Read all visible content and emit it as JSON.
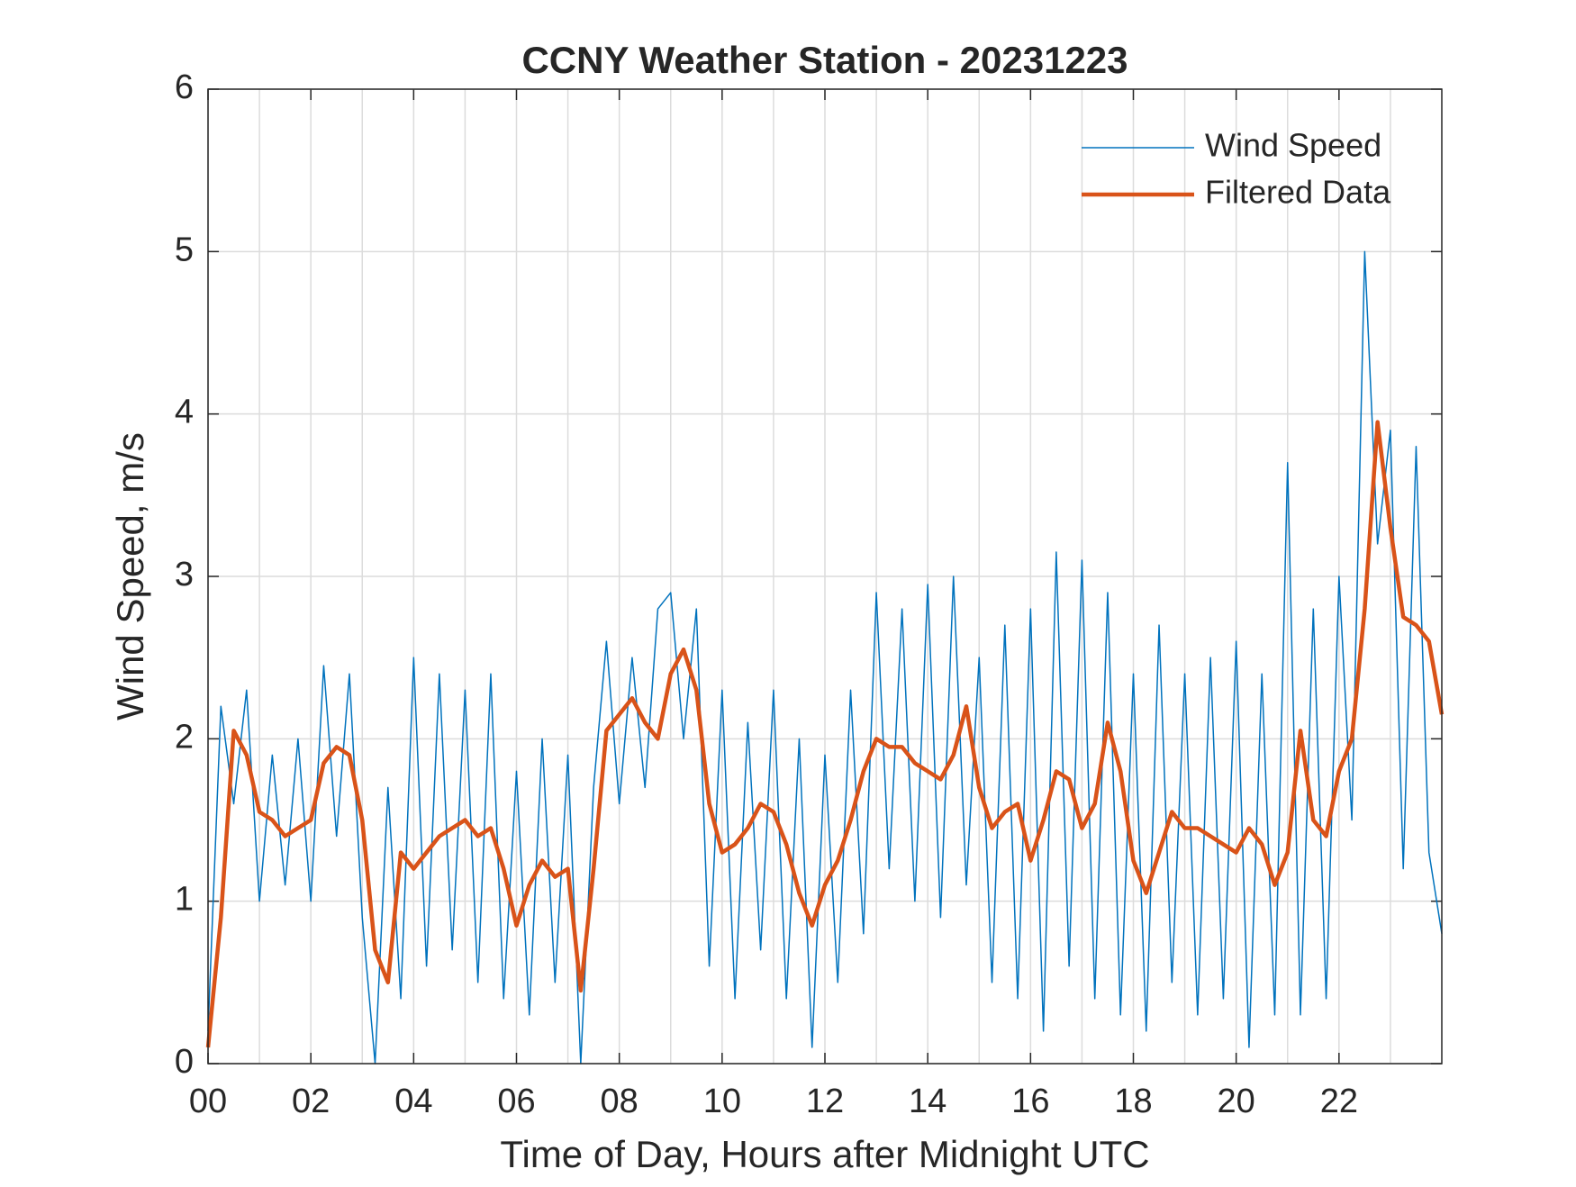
{
  "chart_data": {
    "type": "line",
    "title": "CCNY Weather Station - 20231223",
    "xlabel": "Time of Day, Hours after Midnight UTC",
    "ylabel": "Wind Speed, m/s",
    "xlim": [
      0,
      24
    ],
    "ylim": [
      0,
      6
    ],
    "xticks": [
      {
        "value": 0,
        "label": "00"
      },
      {
        "value": 2,
        "label": "02"
      },
      {
        "value": 4,
        "label": "04"
      },
      {
        "value": 6,
        "label": "06"
      },
      {
        "value": 8,
        "label": "08"
      },
      {
        "value": 10,
        "label": "10"
      },
      {
        "value": 12,
        "label": "12"
      },
      {
        "value": 14,
        "label": "14"
      },
      {
        "value": 16,
        "label": "16"
      },
      {
        "value": 18,
        "label": "18"
      },
      {
        "value": 20,
        "label": "20"
      },
      {
        "value": 22,
        "label": "22"
      }
    ],
    "xminorgrid": [
      1,
      3,
      5,
      7,
      9,
      11,
      13,
      15,
      17,
      19,
      21,
      23
    ],
    "yticks": [
      0,
      1,
      2,
      3,
      4,
      5,
      6
    ],
    "grid": true,
    "legend": "top-right",
    "x": [
      0,
      0.25,
      0.5,
      0.75,
      1,
      1.25,
      1.5,
      1.75,
      2,
      2.25,
      2.5,
      2.75,
      3,
      3.25,
      3.5,
      3.75,
      4,
      4.25,
      4.5,
      4.75,
      5,
      5.25,
      5.5,
      5.75,
      6,
      6.25,
      6.5,
      6.75,
      7,
      7.25,
      7.5,
      7.75,
      8,
      8.25,
      8.5,
      8.75,
      9,
      9.25,
      9.5,
      9.75,
      10,
      10.25,
      10.5,
      10.75,
      11,
      11.25,
      11.5,
      11.75,
      12,
      12.25,
      12.5,
      12.75,
      13,
      13.25,
      13.5,
      13.75,
      14,
      14.25,
      14.5,
      14.75,
      15,
      15.25,
      15.5,
      15.75,
      16,
      16.25,
      16.5,
      16.75,
      17,
      17.25,
      17.5,
      17.75,
      18,
      18.25,
      18.5,
      18.75,
      19,
      19.25,
      19.5,
      19.75,
      20,
      20.25,
      20.5,
      20.75,
      21,
      21.25,
      21.5,
      21.75,
      22,
      22.25,
      22.5,
      22.75,
      23,
      23.25,
      23.5,
      23.75,
      24
    ],
    "series": [
      {
        "name": "Wind Speed",
        "color": "#0072BD",
        "width": 1.5,
        "values": [
          0.2,
          2.2,
          1.6,
          2.3,
          1.0,
          1.9,
          1.1,
          2.0,
          1.0,
          2.45,
          1.4,
          2.4,
          0.9,
          0.0,
          1.7,
          0.4,
          2.5,
          0.6,
          2.4,
          0.7,
          2.3,
          0.5,
          2.4,
          0.4,
          1.8,
          0.3,
          2.0,
          0.5,
          1.9,
          0.0,
          1.7,
          2.6,
          1.6,
          2.5,
          1.7,
          2.8,
          2.9,
          2.0,
          2.8,
          0.6,
          2.3,
          0.4,
          2.1,
          0.7,
          2.3,
          0.4,
          2.0,
          0.1,
          1.9,
          0.5,
          2.3,
          0.8,
          2.9,
          1.2,
          2.8,
          1.0,
          2.95,
          0.9,
          3.0,
          1.1,
          2.5,
          0.5,
          2.7,
          0.4,
          2.8,
          0.2,
          3.15,
          0.6,
          3.1,
          0.4,
          2.9,
          0.3,
          2.4,
          0.2,
          2.7,
          0.5,
          2.4,
          0.3,
          2.5,
          0.4,
          2.6,
          0.1,
          2.4,
          0.3,
          3.7,
          0.3,
          2.8,
          0.4,
          3.0,
          1.5,
          5.0,
          3.2,
          3.9,
          1.2,
          3.8,
          1.3,
          0.8
        ]
      },
      {
        "name": "Filtered Data",
        "color": "#D95319",
        "width": 4.5,
        "values": [
          0.1,
          0.9,
          2.05,
          1.9,
          1.55,
          1.5,
          1.4,
          1.45,
          1.5,
          1.85,
          1.95,
          1.9,
          1.5,
          0.7,
          0.5,
          1.3,
          1.2,
          1.3,
          1.4,
          1.45,
          1.5,
          1.4,
          1.45,
          1.2,
          0.85,
          1.1,
          1.25,
          1.15,
          1.2,
          0.45,
          1.2,
          2.05,
          2.15,
          2.25,
          2.1,
          2.0,
          2.4,
          2.55,
          2.3,
          1.6,
          1.3,
          1.35,
          1.45,
          1.6,
          1.55,
          1.35,
          1.05,
          0.85,
          1.1,
          1.25,
          1.5,
          1.8,
          2.0,
          1.95,
          1.95,
          1.85,
          1.8,
          1.75,
          1.9,
          2.2,
          1.7,
          1.45,
          1.55,
          1.6,
          1.25,
          1.5,
          1.8,
          1.75,
          1.45,
          1.6,
          2.1,
          1.8,
          1.25,
          1.05,
          1.3,
          1.55,
          1.45,
          1.45,
          1.4,
          1.35,
          1.3,
          1.45,
          1.35,
          1.1,
          1.3,
          2.05,
          1.5,
          1.4,
          1.8,
          2.0,
          2.8,
          3.95,
          3.3,
          2.75,
          2.7,
          2.6,
          2.15
        ]
      }
    ]
  }
}
